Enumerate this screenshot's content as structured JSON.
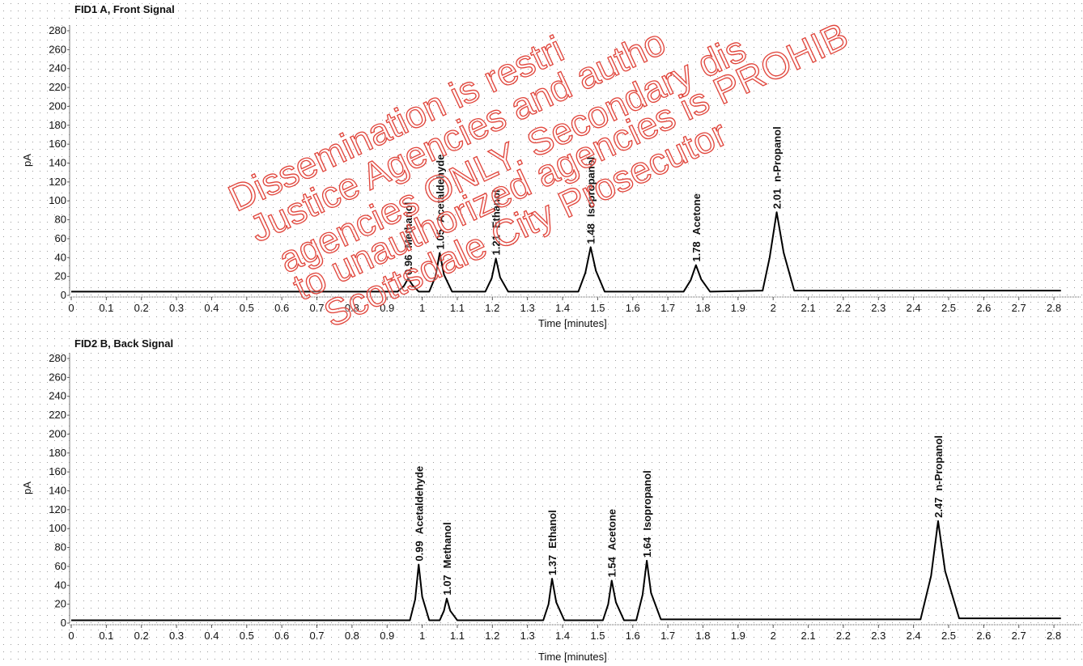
{
  "watermark": [
    "Dissemination is restri",
    "Justice Agencies and autho",
    "agencies ONLY. Secondary dis",
    "to unauthorized agencies is PROHIB",
    "Scottsdale City Prosecutor"
  ],
  "chart_data": [
    {
      "type": "line",
      "title": "FID1 A, Front Signal",
      "x_label": "Time [minutes]",
      "y_label": "pA",
      "color": "#000000",
      "xlim": [
        0,
        2.82
      ],
      "ylim": [
        0,
        286
      ],
      "xticks": [
        0,
        0.1,
        0.2,
        0.3,
        0.4,
        0.5,
        0.6,
        0.7,
        0.8,
        0.9,
        1,
        1.1,
        1.2,
        1.3,
        1.4,
        1.5,
        1.6,
        1.7,
        1.8,
        1.9,
        2,
        2.1,
        2.2,
        2.3,
        2.4,
        2.5,
        2.6,
        2.7,
        2.8
      ],
      "yticks": [
        0,
        20,
        40,
        60,
        80,
        100,
        120,
        140,
        160,
        180,
        200,
        220,
        240,
        260,
        280
      ],
      "x": [
        0,
        0.75,
        0.93,
        0.948,
        0.96,
        0.972,
        0.99,
        1.02,
        1.038,
        1.05,
        1.062,
        1.085,
        1.18,
        1.198,
        1.21,
        1.222,
        1.245,
        1.445,
        1.465,
        1.48,
        1.495,
        1.52,
        1.745,
        1.765,
        1.78,
        1.795,
        1.82,
        1.97,
        1.99,
        2.01,
        2.03,
        2.06,
        2.82
      ],
      "values": [
        4,
        4,
        4,
        10,
        18,
        11,
        4,
        4,
        20,
        45,
        22,
        4,
        4,
        18,
        39,
        19,
        4,
        4,
        24,
        51,
        26,
        4,
        4,
        16,
        32,
        17,
        4,
        5,
        40,
        88,
        45,
        5,
        5
      ],
      "peaks": [
        {
          "time": 0.96,
          "name": "Methanol",
          "height": 18
        },
        {
          "time": 1.05,
          "name": "Acetaldehyde",
          "height": 45
        },
        {
          "time": 1.21,
          "name": "Ethanol",
          "height": 39
        },
        {
          "time": 1.48,
          "name": "Isopropanol",
          "height": 51
        },
        {
          "time": 1.78,
          "name": "Acetone",
          "height": 32
        },
        {
          "time": 2.01,
          "name": "n-Propanol",
          "height": 88
        }
      ]
    },
    {
      "type": "line",
      "title": "FID2 B, Back Signal",
      "x_label": "Time [minutes]",
      "y_label": "pA",
      "color": "#000000",
      "xlim": [
        0,
        2.82
      ],
      "ylim": [
        0,
        286
      ],
      "xticks": [
        0,
        0.1,
        0.2,
        0.3,
        0.4,
        0.5,
        0.6,
        0.7,
        0.8,
        0.9,
        1,
        1.1,
        1.2,
        1.3,
        1.4,
        1.5,
        1.6,
        1.7,
        1.8,
        1.9,
        2,
        2.1,
        2.2,
        2.3,
        2.4,
        2.5,
        2.6,
        2.7,
        2.8
      ],
      "yticks": [
        0,
        20,
        40,
        60,
        80,
        100,
        120,
        140,
        160,
        180,
        200,
        220,
        240,
        260,
        280
      ],
      "x": [
        0,
        0.75,
        0.965,
        0.98,
        0.99,
        1.0,
        1.02,
        1.05,
        1.062,
        1.07,
        1.08,
        1.1,
        1.345,
        1.36,
        1.37,
        1.382,
        1.405,
        1.515,
        1.53,
        1.54,
        1.552,
        1.575,
        1.61,
        1.628,
        1.64,
        1.652,
        1.68,
        2.42,
        2.45,
        2.47,
        2.49,
        2.53,
        2.82
      ],
      "values": [
        3,
        3,
        3,
        25,
        62,
        28,
        3,
        3,
        13,
        26,
        13,
        3,
        3,
        20,
        47,
        22,
        3,
        3,
        20,
        45,
        22,
        3,
        3,
        30,
        66,
        32,
        4,
        4,
        50,
        108,
        55,
        5,
        5
      ],
      "peaks": [
        {
          "time": 0.99,
          "name": "Acetaldehyde",
          "height": 62
        },
        {
          "time": 1.07,
          "name": "Methanol",
          "height": 26
        },
        {
          "time": 1.37,
          "name": "Ethanol",
          "height": 47
        },
        {
          "time": 1.54,
          "name": "Acetone",
          "height": 45
        },
        {
          "time": 1.64,
          "name": "Isopropanol",
          "height": 66
        },
        {
          "time": 2.47,
          "name": "n-Propanol",
          "height": 108
        }
      ]
    }
  ]
}
